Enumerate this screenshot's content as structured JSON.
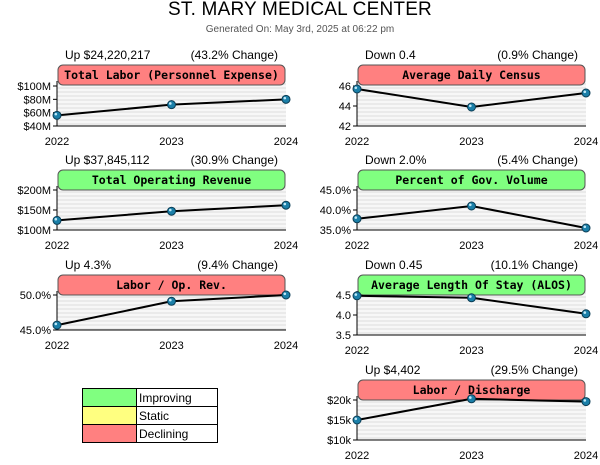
{
  "header": {
    "title": "ST. MARY MEDICAL CENTER",
    "subtitle": "Generated On: May 3rd, 2025 at 06:22 pm"
  },
  "colors": {
    "improving": "#80ff80",
    "static": "#ffff80",
    "declining": "#ff8080",
    "line": "#000000",
    "marker": "#1a7fa8"
  },
  "legend": [
    {
      "label": "Improving",
      "color": "#80ff80"
    },
    {
      "label": "Static",
      "color": "#ffff80"
    },
    {
      "label": "Declining",
      "color": "#ff8080"
    }
  ],
  "chart_data": [
    {
      "type": "line",
      "title": "Total Labor (Personnel Expense)",
      "status": "declining",
      "change_label": "Up $24,220,217",
      "pct_label": "(43.2% Change)",
      "x": [
        "2022",
        "2023",
        "2024"
      ],
      "values": [
        56,
        72,
        80
      ],
      "ylim": [
        40,
        100
      ],
      "yticks": [
        40,
        60,
        80,
        100
      ],
      "ytick_labels": [
        "$40M",
        "$60M",
        "$80M",
        "$100M"
      ]
    },
    {
      "type": "line",
      "title": "Average Daily Census",
      "status": "declining",
      "change_label": "Down 0.4",
      "pct_label": "(0.9% Change)",
      "x": [
        "2022",
        "2023",
        "2024"
      ],
      "values": [
        45.7,
        43.9,
        45.3
      ],
      "ylim": [
        42,
        46
      ],
      "yticks": [
        42,
        44,
        46
      ],
      "ytick_labels": [
        "42",
        "44",
        "46"
      ]
    },
    {
      "type": "line",
      "title": "Total Operating Revenue",
      "status": "improving",
      "change_label": "Up $37,845,112",
      "pct_label": "(30.9% Change)",
      "x": [
        "2022",
        "2023",
        "2024"
      ],
      "values": [
        124,
        147,
        162
      ],
      "ylim": [
        100,
        200
      ],
      "yticks": [
        100,
        150,
        200
      ],
      "ytick_labels": [
        "$100M",
        "$150M",
        "$200M"
      ]
    },
    {
      "type": "line",
      "title": "Percent of Gov. Volume",
      "status": "improving",
      "change_label": "Down 2.0%",
      "pct_label": "(5.4% Change)",
      "x": [
        "2022",
        "2023",
        "2024"
      ],
      "values": [
        37.8,
        41.0,
        35.5
      ],
      "ylim": [
        35,
        45
      ],
      "yticks": [
        35,
        40,
        45
      ],
      "ytick_labels": [
        "35.0%",
        "40.0%",
        "45.0%"
      ]
    },
    {
      "type": "line",
      "title": "Labor / Op. Rev.",
      "status": "declining",
      "change_label": "Up 4.3%",
      "pct_label": "(9.4% Change)",
      "x": [
        "2022",
        "2023",
        "2024"
      ],
      "values": [
        45.7,
        49.1,
        50.0
      ],
      "ylim": [
        45,
        50
      ],
      "yticks": [
        45,
        50
      ],
      "ytick_labels": [
        "45.0%",
        "50.0%"
      ]
    },
    {
      "type": "line",
      "title": "Average Length Of Stay (ALOS)",
      "status": "improving",
      "change_label": "Down 0.45",
      "pct_label": "(10.1% Change)",
      "x": [
        "2022",
        "2023",
        "2024"
      ],
      "values": [
        4.48,
        4.43,
        4.03
      ],
      "ylim": [
        3.5,
        4.5
      ],
      "yticks": [
        3.5,
        4.0,
        4.5
      ],
      "ytick_labels": [
        "3.5",
        "4.0",
        "4.5"
      ]
    },
    {
      "type": "line",
      "title": "Labor / Discharge",
      "status": "declining",
      "change_label": "Up $4,402",
      "pct_label": "(29.5% Change)",
      "x": [
        "2022",
        "2023",
        "2024"
      ],
      "values": [
        15.0,
        20.3,
        19.6
      ],
      "ylim": [
        10,
        20
      ],
      "yticks": [
        10,
        15,
        20
      ],
      "ytick_labels": [
        "$10k",
        "$15k",
        "$20k"
      ]
    }
  ]
}
